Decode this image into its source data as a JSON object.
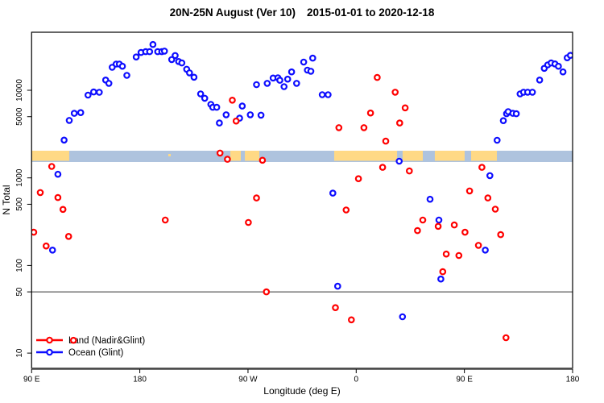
{
  "window": {
    "title_main": "20N-25N August (Ver 10)",
    "title_dates": "2015-01-01 to 2020-12-18"
  },
  "chart_data": {
    "type": "scatter",
    "title": "20N-25N August (Ver 10)   2015-01-01 to 2020-12-18",
    "xlabel": "Longitude (deg E)",
    "ylabel": "N Total",
    "x_axis": {
      "note": "longitude axis wraps eastward from 90E through 180, 90W, 0 back to 90E and 180; internal coordinate runs 90..540 deg",
      "tick_axis_deg": [
        90,
        180,
        270,
        360,
        450,
        540
      ],
      "tick_labels": [
        "90 E",
        "180",
        "90 W",
        "0",
        "90 E",
        "180"
      ],
      "range_axis_deg": [
        90,
        540
      ]
    },
    "y_axis": {
      "scale": "log",
      "tick_values": [
        10000,
        5000,
        1000,
        500,
        100,
        50,
        10
      ],
      "tick_labels": [
        "10000",
        "5000",
        "1000",
        "500",
        "100",
        "50",
        "10"
      ],
      "range": [
        7,
        46000
      ]
    },
    "reference_line_value": 50,
    "grid": "off",
    "legend": {
      "position": "bottom-left-inside",
      "entries": [
        {
          "label": "Land (Nadir&Glint)",
          "color": "#ff0000"
        },
        {
          "label": "Ocean (Glint)",
          "color": "#0d0dff"
        }
      ]
    },
    "map_band": {
      "description": "world-map strip across plot showing land/ocean along longitude",
      "ocean_color": "#aec3de",
      "land_color": "#ffd985",
      "band_value_center": 1800,
      "land_segments_axis_deg": [
        [
          90,
          121.3
        ],
        [
          255.3,
          264
        ],
        [
          267.4,
          279.4
        ],
        [
          341.7,
          394
        ],
        [
          398.6,
          415.4
        ],
        [
          425.4,
          450.2
        ],
        [
          455.6,
          477
        ]
      ],
      "island_specks_axis_deg": [
        [
          203.7,
          205.7
        ]
      ]
    },
    "series": [
      {
        "name": "Land (Nadir&Glint)",
        "color": "#ff0000",
        "marker": "open-circle",
        "points": [
          [
            91.8,
            240
          ],
          [
            97.2,
            680
          ],
          [
            102.1,
            167
          ],
          [
            106.7,
            1350
          ],
          [
            111.9,
            597
          ],
          [
            116.1,
            437
          ],
          [
            120.8,
            215
          ],
          [
            124.8,
            14
          ],
          [
            201.2,
            330
          ],
          [
            246.7,
            1920
          ],
          [
            252.9,
            1630
          ],
          [
            257,
            7700
          ],
          [
            260.1,
            4450
          ],
          [
            270.3,
            310
          ],
          [
            277.1,
            590
          ],
          [
            282,
            1590
          ],
          [
            285.3,
            50
          ],
          [
            342.7,
            33
          ],
          [
            345.6,
            3740
          ],
          [
            351.6,
            430
          ],
          [
            356,
            24
          ],
          [
            361.9,
            980
          ],
          [
            366.4,
            3740
          ],
          [
            371.9,
            5500
          ],
          [
            377.5,
            14000
          ],
          [
            382,
            1320
          ],
          [
            384.6,
            2630
          ],
          [
            392.4,
            9500
          ],
          [
            396.2,
            4230
          ],
          [
            400.7,
            6300
          ],
          [
            404.2,
            1200
          ],
          [
            411,
            250
          ],
          [
            415.4,
            330
          ],
          [
            428.2,
            280
          ],
          [
            432,
            85
          ],
          [
            434.9,
            135
          ],
          [
            441.6,
            290
          ],
          [
            445.4,
            130
          ],
          [
            450.5,
            240
          ],
          [
            454.3,
            710
          ],
          [
            461.7,
            170
          ],
          [
            464.6,
            1320
          ],
          [
            469.5,
            590
          ],
          [
            475.7,
            440
          ],
          [
            480.2,
            225
          ],
          [
            484.6,
            15
          ]
        ]
      },
      {
        "name": "Ocean (Glint)",
        "color": "#0d0dff",
        "marker": "open-circle",
        "points": [
          [
            107.4,
            150
          ],
          [
            111.9,
            1100
          ],
          [
            117,
            2700
          ],
          [
            121.3,
            4530
          ],
          [
            125.5,
            5460
          ],
          [
            130.8,
            5560
          ],
          [
            136.9,
            8800
          ],
          [
            141.6,
            9560
          ],
          [
            146.3,
            9480
          ],
          [
            151.6,
            13100
          ],
          [
            154.3,
            12000
          ],
          [
            157,
            18300
          ],
          [
            160.3,
            19900
          ],
          [
            163,
            19900
          ],
          [
            165.5,
            18800
          ],
          [
            169.2,
            14800
          ],
          [
            177,
            24000
          ],
          [
            181,
            27000
          ],
          [
            184.9,
            27600
          ],
          [
            188.2,
            27600
          ],
          [
            190.9,
            33300
          ],
          [
            194.9,
            27600
          ],
          [
            198.3,
            27600
          ],
          [
            200.5,
            28000
          ],
          [
            206.5,
            22400
          ],
          [
            209.4,
            24900
          ],
          [
            212.3,
            21300
          ],
          [
            215,
            20500
          ],
          [
            219,
            17400
          ],
          [
            221.3,
            15800
          ],
          [
            225.1,
            14100
          ],
          [
            230.6,
            9100
          ],
          [
            234,
            8100
          ],
          [
            239.1,
            6900
          ],
          [
            240.7,
            6400
          ],
          [
            244,
            6400
          ],
          [
            246.2,
            4230
          ],
          [
            251.8,
            5250
          ],
          [
            263,
            4800
          ],
          [
            265.2,
            6600
          ],
          [
            271.9,
            5250
          ],
          [
            277.1,
            11600
          ],
          [
            280.8,
            5200
          ],
          [
            286,
            12000
          ],
          [
            290.9,
            13800
          ],
          [
            294.9,
            13900
          ],
          [
            296.5,
            13000
          ],
          [
            300,
            11000
          ],
          [
            303,
            13400
          ],
          [
            306.3,
            16200
          ],
          [
            310.4,
            12000
          ],
          [
            316.3,
            21000
          ],
          [
            319.4,
            17000
          ],
          [
            322.3,
            16500
          ],
          [
            323.8,
            23300
          ],
          [
            331.7,
            8900
          ],
          [
            336.6,
            8900
          ],
          [
            340.6,
            670
          ],
          [
            344.6,
            58
          ],
          [
            395.8,
            1550
          ],
          [
            398.5,
            26
          ],
          [
            421.4,
            570
          ],
          [
            428.8,
            330
          ],
          [
            430.4,
            70
          ],
          [
            467.4,
            150
          ],
          [
            471.2,
            1060
          ],
          [
            477.2,
            2690
          ],
          [
            482.4,
            4500
          ],
          [
            485.1,
            5400
          ],
          [
            486.4,
            5700
          ],
          [
            490.3,
            5460
          ],
          [
            493.2,
            5400
          ],
          [
            496.3,
            9100
          ],
          [
            499.2,
            9500
          ],
          [
            502.6,
            9500
          ],
          [
            506.6,
            9500
          ],
          [
            512.6,
            13100
          ],
          [
            516.4,
            17800
          ],
          [
            519.3,
            19500
          ],
          [
            522.2,
            20500
          ],
          [
            525.3,
            20000
          ],
          [
            528.2,
            18800
          ],
          [
            532,
            16200
          ],
          [
            535.5,
            23500
          ],
          [
            538.2,
            25000
          ]
        ]
      }
    ]
  }
}
